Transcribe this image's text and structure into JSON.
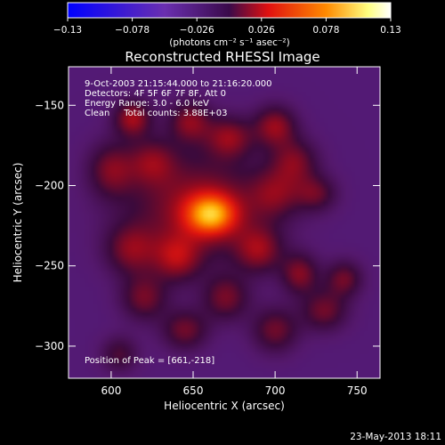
{
  "chart_data": {
    "type": "heatmap",
    "title": "Reconstructed RHESSI Image",
    "xlabel": "Heliocentric X (arcsec)",
    "ylabel": "Heliocentric Y (arcsec)",
    "xlim": [
      574,
      764
    ],
    "ylim": [
      -320,
      -126
    ],
    "xticks": [
      600,
      650,
      700,
      750
    ],
    "yticks": [
      -150,
      -200,
      -250,
      -300
    ],
    "colorbar": {
      "label": "(photons cm⁻² s⁻¹ asec⁻²)",
      "range": [
        -0.13,
        0.13
      ],
      "ticks": [
        "-0.13",
        "-0.078",
        "-0.026",
        "0.026",
        "0.078",
        "0.13"
      ]
    },
    "info_lines": [
      "9-Oct-2003 21:15:44.000 to 21:16:20.000",
      "Detectors: 4F 5F 6F 7F 8F, Att 0",
      "Energy Range: 3.0 - 6.0 keV",
      "Clean     Total counts: 3.88E+03"
    ],
    "peak_label": "Position of Peak = [661,-218]",
    "peak": {
      "x": 661,
      "y": -218,
      "value": 0.13
    },
    "sources": [
      {
        "x": 661,
        "y": -218,
        "sx": 11,
        "sy": 9,
        "a": 0.095
      },
      {
        "x": 652,
        "y": -213,
        "sx": 30,
        "sy": 24,
        "a": 0.055
      },
      {
        "x": 613,
        "y": -158,
        "sx": 8,
        "sy": 8,
        "a": 0.06
      },
      {
        "x": 600,
        "y": -190,
        "sx": 10,
        "sy": 12,
        "a": 0.045
      },
      {
        "x": 625,
        "y": -185,
        "sx": 10,
        "sy": 10,
        "a": 0.04
      },
      {
        "x": 648,
        "y": -160,
        "sx": 9,
        "sy": 9,
        "a": 0.05
      },
      {
        "x": 672,
        "y": -170,
        "sx": 10,
        "sy": 9,
        "a": 0.05
      },
      {
        "x": 700,
        "y": -163,
        "sx": 9,
        "sy": 9,
        "a": 0.055
      },
      {
        "x": 712,
        "y": -185,
        "sx": 10,
        "sy": 10,
        "a": 0.045
      },
      {
        "x": 725,
        "y": -205,
        "sx": 9,
        "sy": 8,
        "a": 0.04
      },
      {
        "x": 690,
        "y": -240,
        "sx": 10,
        "sy": 10,
        "a": 0.05
      },
      {
        "x": 715,
        "y": -255,
        "sx": 8,
        "sy": 9,
        "a": 0.05
      },
      {
        "x": 742,
        "y": -258,
        "sx": 8,
        "sy": 8,
        "a": 0.045
      },
      {
        "x": 730,
        "y": -278,
        "sx": 10,
        "sy": 9,
        "a": 0.045
      },
      {
        "x": 700,
        "y": -290,
        "sx": 10,
        "sy": 10,
        "a": 0.045
      },
      {
        "x": 670,
        "y": -270,
        "sx": 10,
        "sy": 10,
        "a": 0.045
      },
      {
        "x": 640,
        "y": -245,
        "sx": 10,
        "sy": 10,
        "a": 0.05
      },
      {
        "x": 612,
        "y": -240,
        "sx": 11,
        "sy": 11,
        "a": 0.045
      },
      {
        "x": 620,
        "y": -270,
        "sx": 10,
        "sy": 10,
        "a": 0.045
      },
      {
        "x": 645,
        "y": -290,
        "sx": 10,
        "sy": 9,
        "a": 0.045
      },
      {
        "x": 605,
        "y": -305,
        "sx": 8,
        "sy": 8,
        "a": 0.035
      },
      {
        "x": 700,
        "y": -205,
        "sx": 11,
        "sy": 11,
        "a": 0.04
      }
    ],
    "background_level": -0.045,
    "colormap": [
      "#0000ff",
      "#6a2fb0",
      "#5a1a6a",
      "#e01010",
      "#ff8a00",
      "#ffff80",
      "#ffffff"
    ]
  },
  "timestamp": "23-May-2013 18:11"
}
